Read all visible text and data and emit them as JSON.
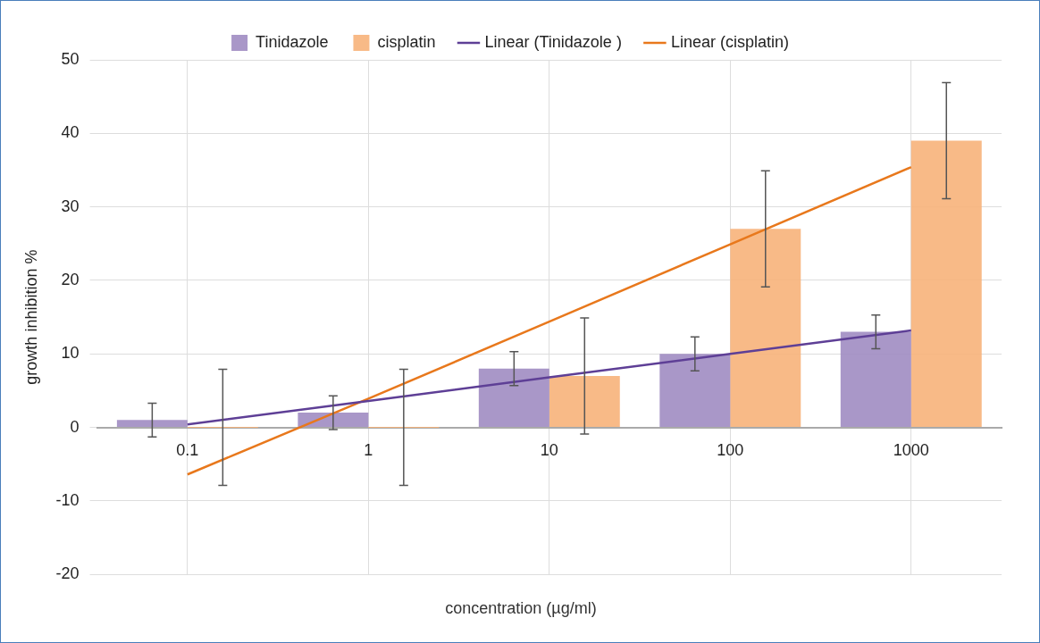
{
  "chart_data": {
    "type": "bar",
    "xlabel": "concentration (µg/ml)",
    "ylabel": "growth inhibition %",
    "categories": [
      "0.1",
      "1",
      "10",
      "100",
      "1000"
    ],
    "series": [
      {
        "name": "Tinidazole",
        "color": "#a08cc2",
        "values": [
          1,
          2,
          8,
          10,
          13
        ],
        "errors": [
          2.3,
          2.3,
          2.3,
          2.3,
          2.3
        ]
      },
      {
        "name": "cisplatin",
        "color": "#f7b27a",
        "values": [
          0,
          0,
          7,
          27,
          39
        ],
        "errors": [
          7.9,
          7.9,
          7.9,
          7.9,
          7.9
        ]
      },
      {
        "name": "Linear (Tinidazole )",
        "type": "line",
        "color": "#5e3f96",
        "values": [
          0.4,
          3.6,
          6.8,
          10,
          13.2
        ]
      },
      {
        "name": "Linear (cisplatin)",
        "type": "line",
        "color": "#e8781c",
        "values": [
          -6.4,
          3.9,
          14.4,
          24.9,
          35.4
        ]
      }
    ],
    "ylim": [
      -20,
      50
    ],
    "yticks": [
      -20,
      -10,
      0,
      10,
      20,
      30,
      40,
      50
    ],
    "grid": true,
    "legend": "top",
    "marker": "none",
    "line_style": "solid"
  }
}
